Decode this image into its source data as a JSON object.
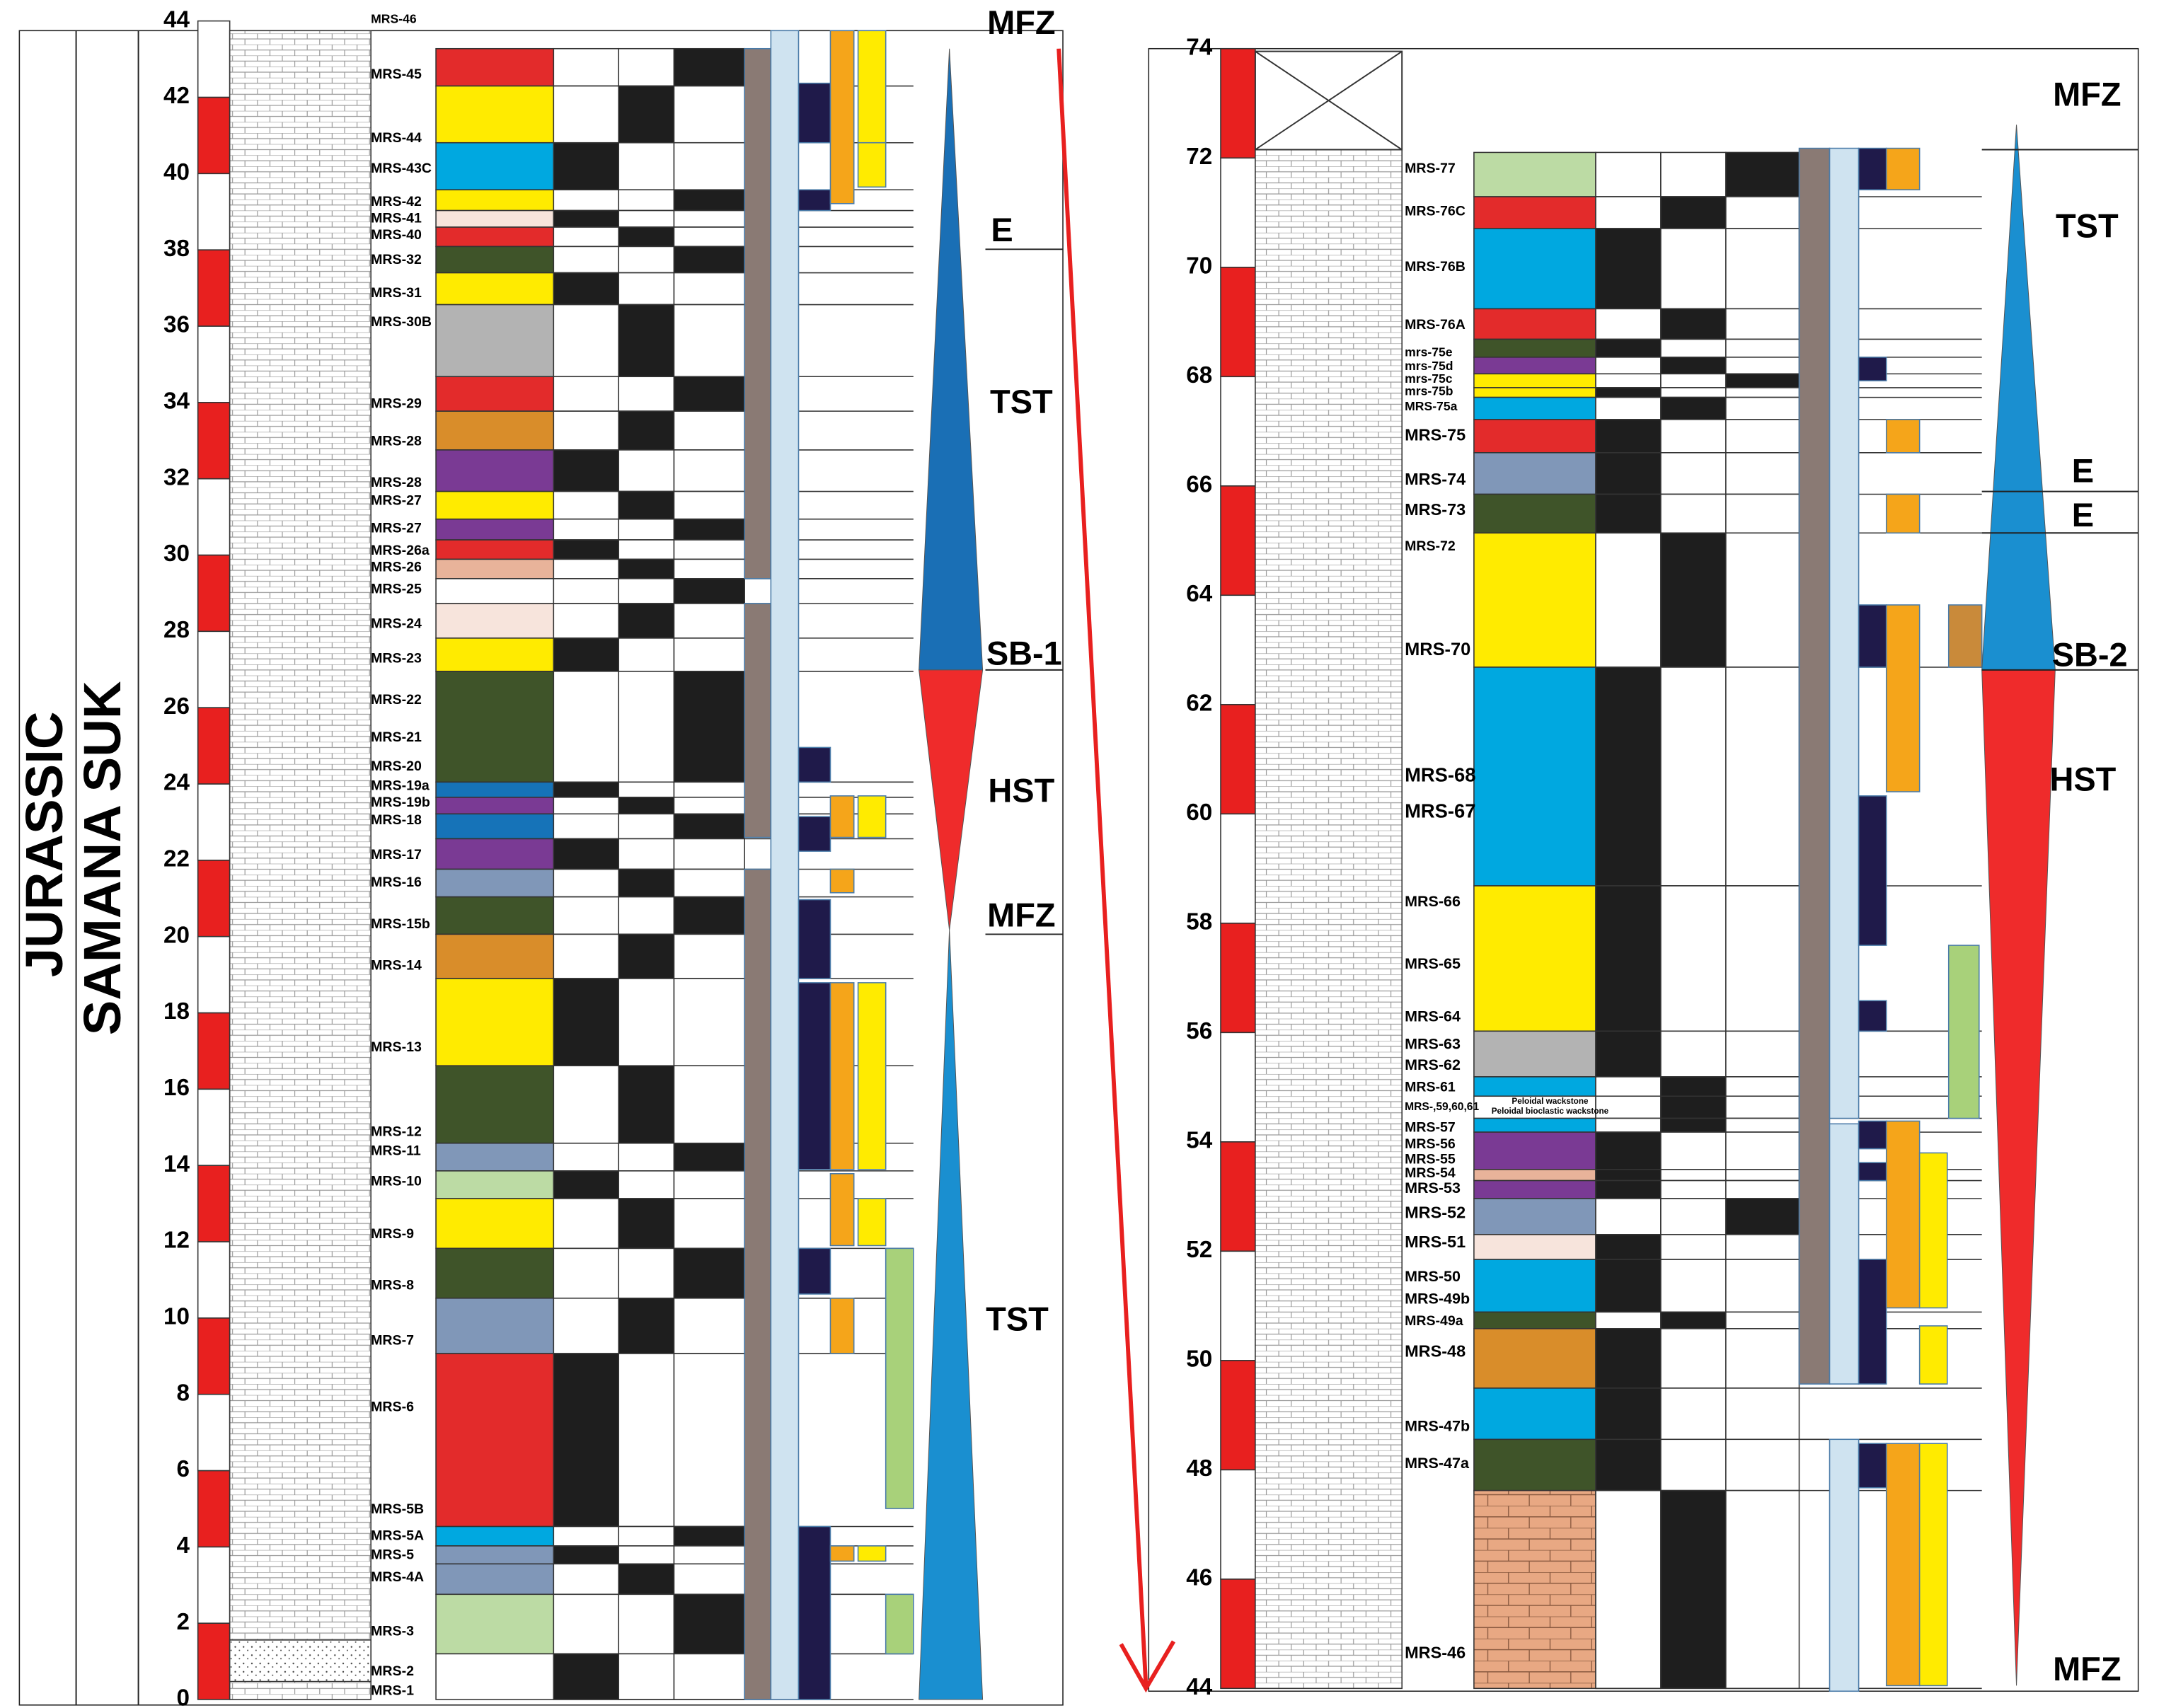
{
  "left_panel": {
    "era": "JURASSIC",
    "formation": "SAMANA SUK",
    "depth_ticks": [
      0,
      2,
      4,
      6,
      8,
      10,
      12,
      14,
      16,
      18,
      20,
      22,
      24,
      26,
      28,
      30,
      32,
      34,
      36,
      38,
      40,
      42,
      44
    ],
    "samples": [
      "MRS-46",
      "MRS-45",
      "MRS-44",
      "MRS-43C",
      "MRS-42",
      "MRS-41",
      "MRS-40",
      "MRS-32",
      "MRS-31",
      "MRS-30B",
      "MRS-29",
      "MRS-28",
      "MRS-28",
      "MRS-27",
      "MRS-27",
      "MRS-26a",
      "MRS-26",
      "MRS-25",
      "MRS-24",
      "MRS-23",
      "MRS-22",
      "MRS-21",
      "MRS-20",
      "MRS-19a",
      "MRS-19b",
      "MRS-18",
      "MRS-17",
      "MRS-16",
      "MRS-15b",
      "MRS-14",
      "MRS-13",
      "MRS-12",
      "MRS-11",
      "MRS-10",
      "MRS-9",
      "MRS-8",
      "MRS-7",
      "MRS-6",
      "MRS-5B",
      "MRS-5A",
      "MRS-5",
      "MRS-4A",
      "MRS-3",
      "MRS-2",
      "MRS-1"
    ],
    "tracts": [
      "MFZ",
      "E",
      "TST",
      "SB-1",
      "HST",
      "MFZ",
      "TST"
    ]
  },
  "right_panel": {
    "depth_ticks": [
      44,
      46,
      48,
      50,
      52,
      54,
      56,
      58,
      60,
      62,
      64,
      66,
      68,
      70,
      72,
      74
    ],
    "samples": [
      "MRS-77",
      "MRS-76C",
      "MRS-76B",
      "MRS-76A",
      "mrs-75e",
      "mrs-75d",
      "mrs-75c",
      "mrs-75b",
      "MRS-75a",
      "MRS-75",
      "MRS-74",
      "MRS-73",
      "MRS-72",
      "MRS-70",
      "MRS-68",
      "MRS-67",
      "MRS-66",
      "MRS-65",
      "MRS-64",
      "MRS-63",
      "MRS-62",
      "MRS-61",
      "MRS-,59,60,61",
      "MRS-57",
      "MRS-56",
      "MRS-55",
      "MRS-54",
      "MRS-53",
      "MRS-52",
      "MRS-51",
      "MRS-50",
      "MRS-49b",
      "MRS-49a",
      "MRS-48",
      "MRS-47b",
      "MRS-47a",
      "MRS-46"
    ],
    "notes": [
      "Peloidal  wackstone",
      "Peloidal bioclastic wackstone"
    ],
    "tracts": [
      "MFZ",
      "TST",
      "E",
      "E",
      "SB-2",
      "HST",
      "MFZ"
    ]
  }
}
